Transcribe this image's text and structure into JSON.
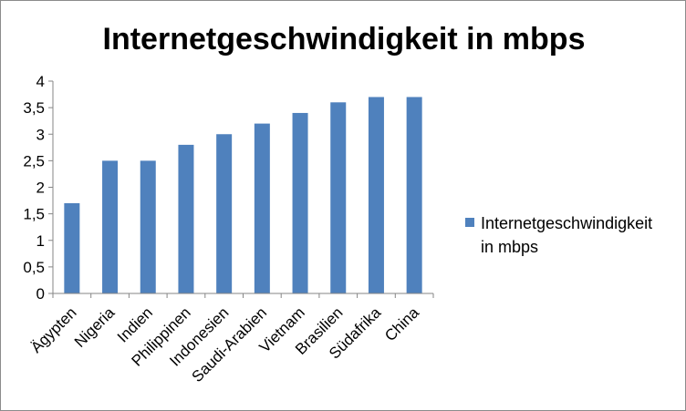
{
  "chart_data": {
    "type": "bar",
    "title": "Internetgeschwindigkeit in mbps",
    "categories": [
      "Ägypten",
      "Nigeria",
      "Indien",
      "Philippinen",
      "Indonesien",
      "Saudi-Arabien",
      "Vietnam",
      "Brasilien",
      "Südafrika",
      "China"
    ],
    "series": [
      {
        "name": "Internetgeschwindigkeit in mbps",
        "values": [
          1.7,
          2.5,
          2.5,
          2.8,
          3.0,
          3.2,
          3.4,
          3.6,
          3.7,
          3.7
        ]
      }
    ],
    "ylim": [
      0,
      4
    ],
    "y_ticks": [
      0,
      0.5,
      1,
      1.5,
      2,
      2.5,
      3,
      3.5,
      4
    ],
    "y_tick_labels": [
      "0",
      "0,5",
      "1",
      "1,5",
      "2",
      "2,5",
      "3",
      "3,5",
      "4"
    ],
    "grid": false,
    "legend_position": "right",
    "bar_color": "#4f81bd"
  }
}
